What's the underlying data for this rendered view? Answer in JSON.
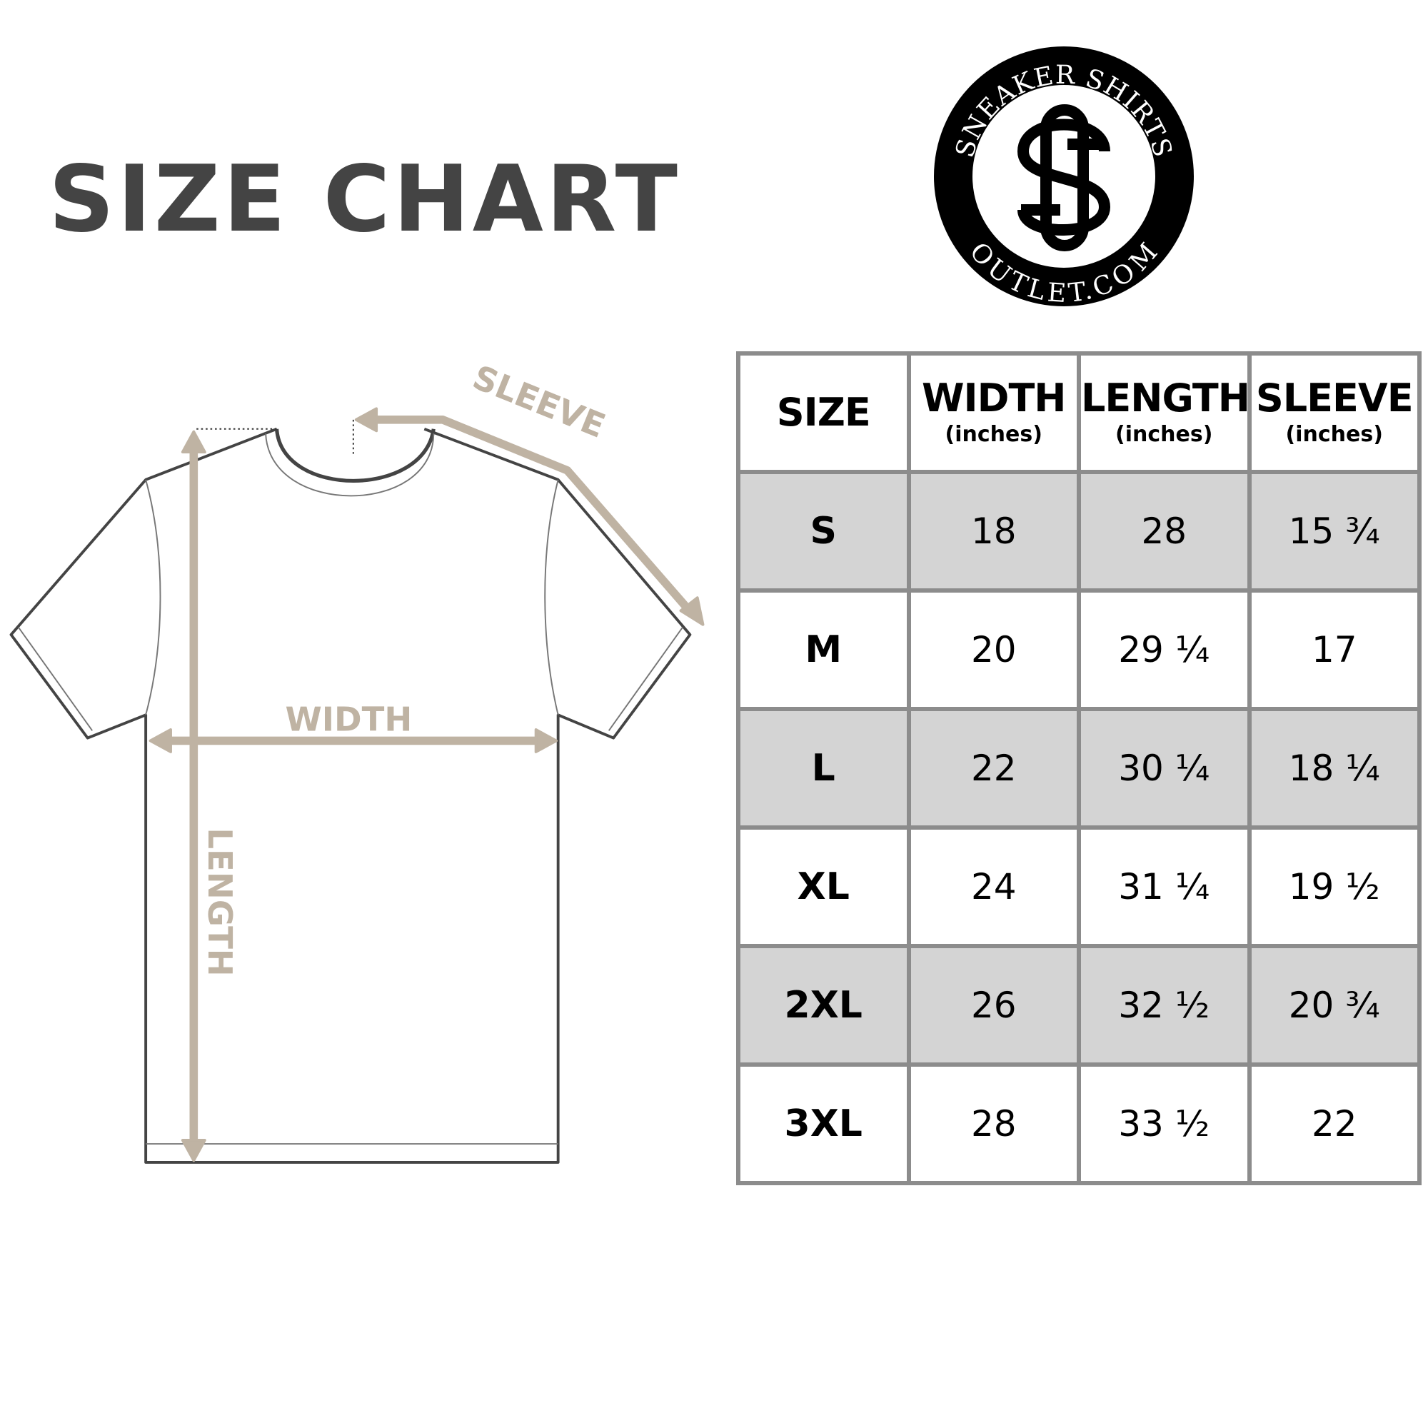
{
  "title": "SIZE CHART",
  "logo": {
    "top_text": "SNEAKER SHIRTS",
    "bottom_text": "OUTLET.COM",
    "monogram": "SO"
  },
  "diagram": {
    "sleeve_label": "SLEEVE",
    "width_label": "WIDTH",
    "length_label": "LENGTH",
    "arrow_color": "#bfb3a3"
  },
  "table": {
    "headers": [
      {
        "label": "SIZE",
        "unit": ""
      },
      {
        "label": "WIDTH",
        "unit": "(inches)"
      },
      {
        "label": "LENGTH",
        "unit": "(inches)"
      },
      {
        "label": "SLEEVE",
        "unit": "(inches)"
      }
    ],
    "rows": [
      [
        "S",
        "18",
        "28",
        "15 ¾"
      ],
      [
        "M",
        "20",
        "29 ¼",
        "17"
      ],
      [
        "L",
        "22",
        "30 ¼",
        "18 ¼"
      ],
      [
        "XL",
        "24",
        "31 ¼",
        "19 ½"
      ],
      [
        "2XL",
        "26",
        "32 ½",
        "20 ¾"
      ],
      [
        "3XL",
        "28",
        "33 ½",
        "22"
      ]
    ],
    "shaded_row_color": "#d4d4d4",
    "border_color": "#8c8c8c"
  }
}
